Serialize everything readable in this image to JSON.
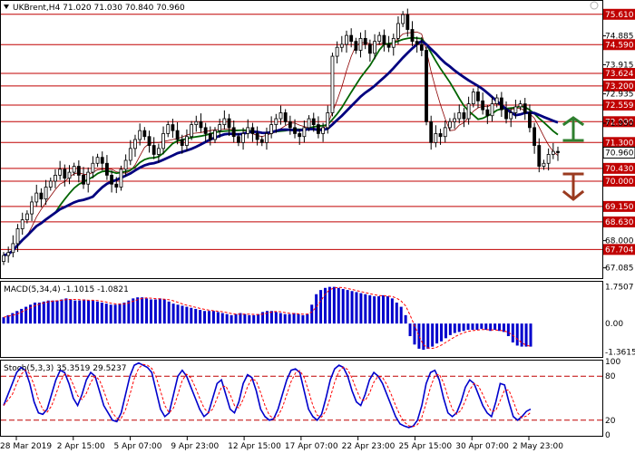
{
  "header": {
    "symbol_line": "UKBrent,H4  71.020 71.030 70.840 70.960"
  },
  "chart_data": {
    "type": "candlestick",
    "symbol": "UKBrent",
    "timeframe": "H4",
    "ohlc": {
      "open": 71.02,
      "high": 71.03,
      "low": 70.84,
      "close": 70.96
    },
    "price_axis": {
      "range": [
        66.77,
        76.03
      ],
      "labels": [
        "75.610",
        "74.885",
        "74.590",
        "73.915",
        "73.624",
        "73.200",
        "72.935",
        "72.559",
        "71.950",
        "71.300",
        "70.960",
        "70.430",
        "70.000",
        "69.150",
        "68.630",
        "68.000",
        "67.704",
        "67.085"
      ]
    },
    "levels": [
      {
        "price": 75.61,
        "label": "75.610",
        "color": "#c00000"
      },
      {
        "price": 74.59,
        "label": "74.590",
        "color": "#c00000"
      },
      {
        "price": 73.624,
        "label": "73.624",
        "color": "#c00000"
      },
      {
        "price": 73.2,
        "label": "73.200",
        "color": "#c00000"
      },
      {
        "price": 72.559,
        "label": "72.559",
        "color": "#c00000"
      },
      {
        "price": 72.0,
        "label": "72.000",
        "color": "#c00000"
      },
      {
        "price": 71.3,
        "label": "71.300",
        "color": "#c00000"
      },
      {
        "price": 70.43,
        "label": "70.430",
        "color": "#c00000"
      },
      {
        "price": 70.0,
        "label": "70.000",
        "color": "#c00000"
      },
      {
        "price": 69.15,
        "label": "69.150",
        "color": "#c00000"
      },
      {
        "price": 68.63,
        "label": "68.630",
        "color": "#c00000"
      },
      {
        "price": 67.704,
        "label": "67.704",
        "color": "#c00000"
      }
    ],
    "current_price": {
      "price": 70.96,
      "label": "70.960"
    },
    "plain_tick_labels": [
      {
        "price": 74.885,
        "label": "74.885"
      },
      {
        "price": 73.915,
        "label": "73.915"
      },
      {
        "price": 72.935,
        "label": "72.935"
      },
      {
        "price": 71.95,
        "label": "71.950"
      },
      {
        "price": 68.0,
        "label": "68.000"
      },
      {
        "price": 67.085,
        "label": "67.085"
      }
    ],
    "closes": [
      67.5,
      67.6,
      67.9,
      68.4,
      68.7,
      68.9,
      69.3,
      69.6,
      69.4,
      69.8,
      70.0,
      70.2,
      70.4,
      70.1,
      70.3,
      70.5,
      70.2,
      69.9,
      70.3,
      70.6,
      70.8,
      70.6,
      70.2,
      69.9,
      69.8,
      70.4,
      70.7,
      71.1,
      71.4,
      71.7,
      71.5,
      71.2,
      70.9,
      71.1,
      71.6,
      71.9,
      71.7,
      71.4,
      71.2,
      71.5,
      71.9,
      72.0,
      71.8,
      71.6,
      71.4,
      71.7,
      71.9,
      72.1,
      71.8,
      71.5,
      71.3,
      71.6,
      71.8,
      71.6,
      71.4,
      71.3,
      71.6,
      71.9,
      72.1,
      72.3,
      72.0,
      71.8,
      71.6,
      71.5,
      71.8,
      72.1,
      71.9,
      71.6,
      71.8,
      72.3,
      74.2,
      74.5,
      74.6,
      74.9,
      74.7,
      74.4,
      74.8,
      74.6,
      74.3,
      74.7,
      74.9,
      74.6,
      74.5,
      74.8,
      75.3,
      75.6,
      75.1,
      74.7,
      74.6,
      74.4,
      72.0,
      71.3,
      71.6,
      71.5,
      71.8,
      72.0,
      72.1,
      72.3,
      72.1,
      72.6,
      73.0,
      72.7,
      72.4,
      72.2,
      72.6,
      72.8,
      72.4,
      72.1,
      72.3,
      72.5,
      72.6,
      72.3,
      71.8,
      71.2,
      70.5,
      70.6,
      70.9,
      71.0,
      70.96
    ],
    "moving_averages": [
      {
        "color": "#8b0000"
      },
      {
        "color": "#006400"
      },
      {
        "color": "#00007f"
      }
    ],
    "time_axis": [
      "28 Mar 2019",
      "2 Apr 15:00",
      "5 Apr 07:00",
      "9 Apr 23:00",
      "12 Apr 15:00",
      "17 Apr 07:00",
      "22 Apr 23:00",
      "25 Apr 15:00",
      "30 Apr 07:00",
      "2 May 23:00"
    ],
    "macd": {
      "label": "MACD(5,34,4) -1.1015 -1.0821",
      "axis_labels": [
        "1.7507",
        "0.00",
        "-1.3615"
      ],
      "range": [
        -1.55,
        1.95
      ],
      "histogram": [
        0.3,
        0.4,
        0.5,
        0.6,
        0.7,
        0.8,
        0.9,
        1.0,
        1.0,
        1.05,
        1.1,
        1.1,
        1.1,
        1.15,
        1.2,
        1.15,
        1.1,
        1.1,
        1.15,
        1.1,
        1.1,
        1.05,
        1.0,
        0.95,
        0.9,
        0.9,
        0.95,
        1.0,
        1.1,
        1.2,
        1.25,
        1.25,
        1.2,
        1.15,
        1.15,
        1.2,
        1.15,
        1.05,
        0.95,
        0.9,
        0.85,
        0.8,
        0.75,
        0.7,
        0.65,
        0.6,
        0.6,
        0.6,
        0.55,
        0.5,
        0.45,
        0.4,
        0.45,
        0.5,
        0.45,
        0.4,
        0.4,
        0.45,
        0.55,
        0.6,
        0.6,
        0.55,
        0.5,
        0.45,
        0.45,
        0.5,
        0.45,
        0.4,
        0.45,
        0.9,
        1.4,
        1.6,
        1.7,
        1.75,
        1.75,
        1.7,
        1.65,
        1.6,
        1.55,
        1.5,
        1.45,
        1.4,
        1.35,
        1.3,
        1.3,
        1.35,
        1.3,
        1.2,
        1.0,
        0.8,
        0.4,
        -0.6,
        -1.0,
        -1.2,
        -1.25,
        -1.2,
        -1.1,
        -0.95,
        -0.85,
        -0.7,
        -0.55,
        -0.45,
        -0.4,
        -0.35,
        -0.3,
        -0.3,
        -0.3,
        -0.25,
        -0.3,
        -0.35,
        -0.3,
        -0.35,
        -0.4,
        -0.6,
        -0.9,
        -1.05,
        -1.1,
        -1.1,
        -1.1
      ]
    },
    "stoch": {
      "label": "Stoch(5,3,3) 35.3519 29.5237",
      "axis_labels": [
        "100",
        "80",
        "20",
        "0"
      ],
      "levels": [
        80,
        20
      ],
      "k": [
        40,
        55,
        70,
        85,
        92,
        88,
        70,
        45,
        30,
        28,
        35,
        55,
        75,
        88,
        85,
        70,
        50,
        40,
        55,
        75,
        85,
        80,
        60,
        40,
        30,
        20,
        18,
        30,
        55,
        80,
        95,
        98,
        95,
        92,
        85,
        60,
        35,
        25,
        30,
        55,
        80,
        88,
        80,
        65,
        50,
        35,
        25,
        30,
        50,
        70,
        75,
        55,
        35,
        30,
        45,
        70,
        82,
        78,
        60,
        35,
        25,
        20,
        22,
        35,
        55,
        75,
        88,
        90,
        85,
        60,
        35,
        25,
        20,
        28,
        50,
        75,
        90,
        95,
        92,
        80,
        60,
        45,
        40,
        55,
        75,
        85,
        80,
        70,
        55,
        40,
        25,
        15,
        12,
        10,
        12,
        20,
        40,
        70,
        85,
        88,
        75,
        50,
        30,
        25,
        30,
        45,
        65,
        75,
        70,
        55,
        40,
        30,
        25,
        45,
        70,
        68,
        45,
        25,
        20,
        25,
        32,
        35
      ]
    }
  }
}
